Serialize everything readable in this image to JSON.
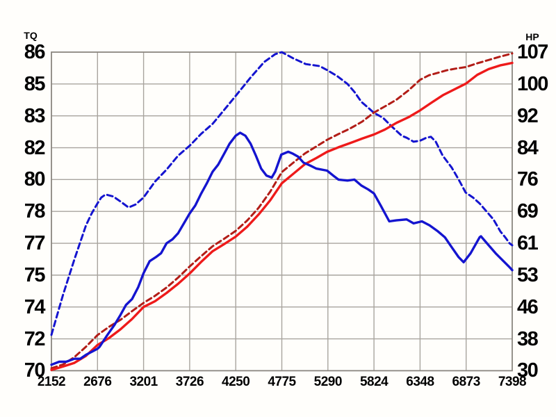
{
  "page": {
    "background": "#fffefb"
  },
  "chart_data": {
    "type": "line",
    "title": "",
    "legend": "none",
    "grid": true,
    "x_axis": {
      "label": "",
      "range": [
        2152,
        7398
      ],
      "tick_labels": [
        "2152",
        "2676",
        "3201",
        "3726",
        "4250",
        "4775",
        "5290",
        "5824",
        "6348",
        "6873",
        "7398"
      ]
    },
    "y_left": {
      "label": "TQ",
      "range": [
        70,
        86
      ],
      "tick_labels": [
        "86",
        "85",
        "83",
        "82",
        "80",
        "78",
        "77",
        "75",
        "74",
        "72",
        "70"
      ]
    },
    "y_right": {
      "label": "HP",
      "range": [
        30,
        107
      ],
      "tick_labels": [
        "107",
        "100",
        "92",
        "84",
        "76",
        "69",
        "61",
        "53",
        "46",
        "38",
        "30"
      ]
    },
    "colors": {
      "tq_line": "#1414cf",
      "hp_line": "#ee1a1a",
      "hp_dashed_line": "#b21d17",
      "grid": "#a8a49e",
      "border": "#8a8680",
      "text": "#000000"
    },
    "series": [
      {
        "name": "tq-dashed-run",
        "axis": "left",
        "style": "dashed",
        "color": "#1414cf",
        "points": [
          [
            2152,
            71.8
          ],
          [
            2283,
            73.8
          ],
          [
            2414,
            75.6
          ],
          [
            2545,
            77.3
          ],
          [
            2610,
            77.9
          ],
          [
            2676,
            78.4
          ],
          [
            2720,
            78.7
          ],
          [
            2769,
            78.85
          ],
          [
            2856,
            78.75
          ],
          [
            2938,
            78.5
          ],
          [
            3030,
            78.2
          ],
          [
            3110,
            78.35
          ],
          [
            3201,
            78.7
          ],
          [
            3332,
            79.5
          ],
          [
            3463,
            80.1
          ],
          [
            3594,
            80.8
          ],
          [
            3726,
            81.3
          ],
          [
            3857,
            81.9
          ],
          [
            3988,
            82.4
          ],
          [
            4119,
            83.1
          ],
          [
            4250,
            83.8
          ],
          [
            4415,
            84.7
          ],
          [
            4573,
            85.5
          ],
          [
            4700,
            85.9
          ],
          [
            4775,
            86.0
          ],
          [
            4900,
            85.7
          ],
          [
            5048,
            85.4
          ],
          [
            5206,
            85.3
          ],
          [
            5290,
            85.1
          ],
          [
            5404,
            84.8
          ],
          [
            5523,
            84.4
          ],
          [
            5602,
            84.0
          ],
          [
            5681,
            83.5
          ],
          [
            5760,
            83.2
          ],
          [
            5824,
            82.95
          ],
          [
            5927,
            82.7
          ],
          [
            6030,
            82.25
          ],
          [
            6140,
            81.8
          ],
          [
            6196,
            81.7
          ],
          [
            6275,
            81.5
          ],
          [
            6348,
            81.55
          ],
          [
            6420,
            81.7
          ],
          [
            6472,
            81.75
          ],
          [
            6528,
            81.5
          ],
          [
            6607,
            80.8
          ],
          [
            6710,
            80.2
          ],
          [
            6789,
            79.6
          ],
          [
            6868,
            78.95
          ],
          [
            6950,
            78.7
          ],
          [
            7027,
            78.4
          ],
          [
            7105,
            78.0
          ],
          [
            7184,
            77.6
          ],
          [
            7263,
            77.0
          ],
          [
            7318,
            76.7
          ],
          [
            7367,
            76.4
          ],
          [
            7398,
            76.3
          ]
        ]
      },
      {
        "name": "hp-dashed-run",
        "axis": "right",
        "style": "dashed",
        "color": "#b21d17",
        "points": [
          [
            2152,
            30.6
          ],
          [
            2283,
            31.5
          ],
          [
            2414,
            33.3
          ],
          [
            2545,
            35.8
          ],
          [
            2676,
            38.6
          ],
          [
            2807,
            40.6
          ],
          [
            2938,
            42.3
          ],
          [
            3070,
            44.4
          ],
          [
            3201,
            46.4
          ],
          [
            3332,
            48.1
          ],
          [
            3463,
            50.1
          ],
          [
            3594,
            52.5
          ],
          [
            3726,
            55.2
          ],
          [
            3857,
            57.7
          ],
          [
            3988,
            60.1
          ],
          [
            4119,
            61.9
          ],
          [
            4250,
            63.8
          ],
          [
            4381,
            66.3
          ],
          [
            4512,
            69.4
          ],
          [
            4644,
            73.3
          ],
          [
            4775,
            78.0
          ],
          [
            4906,
            80.3
          ],
          [
            5037,
            82.5
          ],
          [
            5168,
            84.2
          ],
          [
            5290,
            85.8
          ],
          [
            5420,
            87.2
          ],
          [
            5550,
            88.5
          ],
          [
            5690,
            90.2
          ],
          [
            5824,
            92.4
          ],
          [
            5950,
            93.9
          ],
          [
            6080,
            95.5
          ],
          [
            6220,
            97.8
          ],
          [
            6348,
            100.3
          ],
          [
            6450,
            101.4
          ],
          [
            6550,
            102.0
          ],
          [
            6650,
            102.6
          ],
          [
            6750,
            103.0
          ],
          [
            6873,
            103.4
          ],
          [
            7000,
            104.3
          ],
          [
            7130,
            105.1
          ],
          [
            7260,
            105.9
          ],
          [
            7330,
            106.3
          ],
          [
            7398,
            106.7
          ]
        ]
      },
      {
        "name": "hp-solid-run",
        "axis": "right",
        "style": "solid",
        "color": "#ee1a1a",
        "points": [
          [
            2152,
            30.2
          ],
          [
            2283,
            31.0
          ],
          [
            2414,
            31.9
          ],
          [
            2545,
            33.6
          ],
          [
            2676,
            36.2
          ],
          [
            2807,
            37.9
          ],
          [
            2938,
            40.0
          ],
          [
            3070,
            42.5
          ],
          [
            3201,
            45.4
          ],
          [
            3332,
            46.8
          ],
          [
            3463,
            48.8
          ],
          [
            3594,
            51.0
          ],
          [
            3726,
            53.5
          ],
          [
            3857,
            56.3
          ],
          [
            3988,
            58.9
          ],
          [
            4119,
            60.6
          ],
          [
            4250,
            62.4
          ],
          [
            4381,
            64.8
          ],
          [
            4512,
            67.8
          ],
          [
            4644,
            71.2
          ],
          [
            4775,
            75.3
          ],
          [
            4906,
            77.6
          ],
          [
            5037,
            79.9
          ],
          [
            5168,
            81.4
          ],
          [
            5290,
            82.9
          ],
          [
            5420,
            84.0
          ],
          [
            5550,
            85.0
          ],
          [
            5690,
            86.1
          ],
          [
            5824,
            87.1
          ],
          [
            5950,
            88.3
          ],
          [
            6080,
            89.9
          ],
          [
            6220,
            91.3
          ],
          [
            6348,
            92.9
          ],
          [
            6480,
            94.8
          ],
          [
            6610,
            96.6
          ],
          [
            6740,
            98.0
          ],
          [
            6873,
            99.4
          ],
          [
            7000,
            101.5
          ],
          [
            7130,
            102.9
          ],
          [
            7260,
            103.8
          ],
          [
            7330,
            104.1
          ],
          [
            7398,
            104.4
          ]
        ]
      },
      {
        "name": "tq-solid-run",
        "axis": "left",
        "style": "solid",
        "color": "#1414cf",
        "points": [
          [
            2152,
            70.3
          ],
          [
            2240,
            70.45
          ],
          [
            2320,
            70.45
          ],
          [
            2414,
            70.6
          ],
          [
            2480,
            70.6
          ],
          [
            2545,
            70.8
          ],
          [
            2610,
            70.95
          ],
          [
            2676,
            71.1
          ],
          [
            2700,
            71.2
          ],
          [
            2790,
            71.8
          ],
          [
            2870,
            72.3
          ],
          [
            2938,
            72.8
          ],
          [
            3000,
            73.3
          ],
          [
            3070,
            73.6
          ],
          [
            3140,
            74.2
          ],
          [
            3201,
            74.9
          ],
          [
            3270,
            75.5
          ],
          [
            3340,
            75.7
          ],
          [
            3400,
            75.9
          ],
          [
            3463,
            76.4
          ],
          [
            3530,
            76.6
          ],
          [
            3594,
            76.9
          ],
          [
            3660,
            77.4
          ],
          [
            3726,
            77.9
          ],
          [
            3790,
            78.3
          ],
          [
            3857,
            78.9
          ],
          [
            3920,
            79.4
          ],
          [
            3988,
            80.0
          ],
          [
            4050,
            80.35
          ],
          [
            4119,
            80.9
          ],
          [
            4180,
            81.4
          ],
          [
            4250,
            81.8
          ],
          [
            4300,
            81.95
          ],
          [
            4360,
            81.8
          ],
          [
            4420,
            81.4
          ],
          [
            4480,
            80.8
          ],
          [
            4540,
            80.15
          ],
          [
            4600,
            79.8
          ],
          [
            4660,
            79.7
          ],
          [
            4700,
            80.0
          ],
          [
            4769,
            80.85
          ],
          [
            4848,
            81.0
          ],
          [
            4900,
            80.9
          ],
          [
            4960,
            80.75
          ],
          [
            5022,
            80.45
          ],
          [
            5100,
            80.3
          ],
          [
            5168,
            80.15
          ],
          [
            5290,
            80.05
          ],
          [
            5360,
            79.8
          ],
          [
            5420,
            79.6
          ],
          [
            5523,
            79.55
          ],
          [
            5602,
            79.6
          ],
          [
            5681,
            79.3
          ],
          [
            5760,
            79.1
          ],
          [
            5824,
            78.9
          ],
          [
            5900,
            78.3
          ],
          [
            5998,
            77.5
          ],
          [
            6077,
            77.55
          ],
          [
            6196,
            77.6
          ],
          [
            6275,
            77.4
          ],
          [
            6370,
            77.5
          ],
          [
            6457,
            77.3
          ],
          [
            6552,
            77.0
          ],
          [
            6631,
            76.7
          ],
          [
            6710,
            76.2
          ],
          [
            6789,
            75.7
          ],
          [
            6845,
            75.45
          ],
          [
            6924,
            75.9
          ],
          [
            7027,
            76.7
          ],
          [
            7042,
            76.75
          ],
          [
            7130,
            76.3
          ],
          [
            7209,
            75.9
          ],
          [
            7288,
            75.55
          ],
          [
            7367,
            75.2
          ],
          [
            7398,
            75.05
          ]
        ]
      }
    ]
  }
}
